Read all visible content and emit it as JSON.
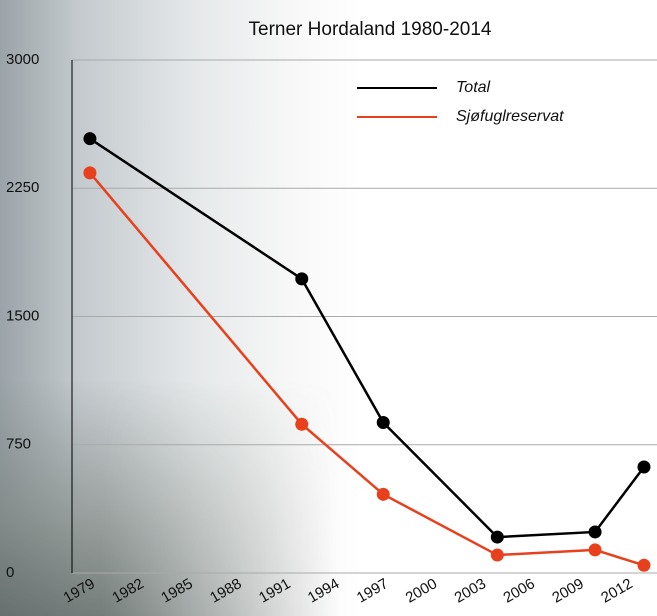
{
  "chart_data": {
    "type": "line",
    "title": "Terner Hordaland 1980-2014",
    "x": [
      1979,
      1992,
      1997,
      2004,
      2010,
      2013
    ],
    "series": [
      {
        "name": "Total",
        "color": "#000000",
        "values": [
          2540,
          1720,
          880,
          210,
          240,
          620
        ]
      },
      {
        "name": "Sjøfuglreservat",
        "color": "#e8401c",
        "values": [
          2340,
          870,
          460,
          105,
          135,
          45
        ]
      }
    ],
    "xlim": [
      1977.9,
      2013.8
    ],
    "xticks": [
      1979,
      1982,
      1985,
      1988,
      1991,
      1994,
      1997,
      2000,
      2003,
      2006,
      2009,
      2012
    ],
    "ylim": [
      0,
      3000
    ],
    "yticks": [
      0,
      750,
      1500,
      2250,
      3000
    ],
    "grid": true,
    "legend": "top-right"
  }
}
